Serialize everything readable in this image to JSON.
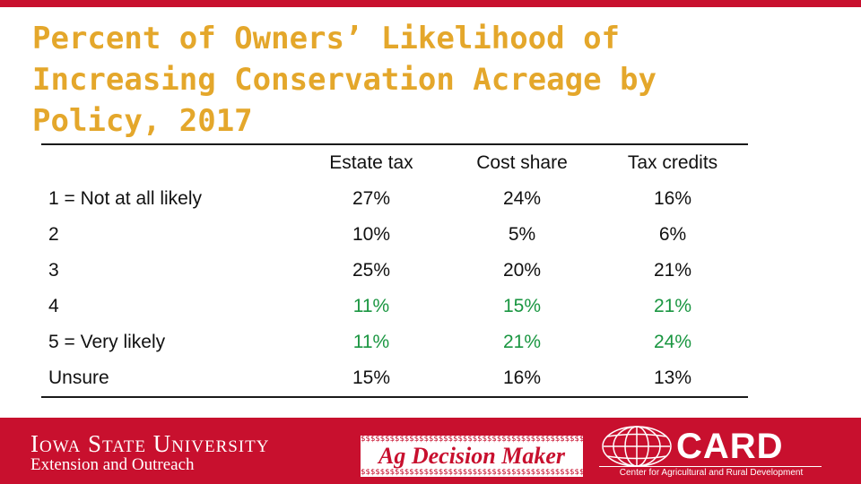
{
  "title": "Percent of Owners’ Likelihood of Increasing Conservation Acreage by Policy, 2017",
  "table": {
    "columns": [
      "Estate tax",
      "Cost share",
      "Tax credits"
    ],
    "rows": [
      {
        "label": "1 = Not at all likely",
        "values": [
          "27%",
          "24%",
          "16%"
        ]
      },
      {
        "label": "2",
        "values": [
          "10%",
          "5%",
          "6%"
        ]
      },
      {
        "label": "3",
        "values": [
          "25%",
          "20%",
          "21%"
        ]
      },
      {
        "label": "4",
        "values": [
          "11%",
          "15%",
          "21%"
        ]
      },
      {
        "label": "5 = Very likely",
        "values": [
          "11%",
          "21%",
          "24%"
        ]
      },
      {
        "label": "Unsure",
        "values": [
          "15%",
          "16%",
          "13%"
        ]
      }
    ]
  },
  "colors": {
    "title": "#e4a72b",
    "accent_red": "#c8102e",
    "highlight_green": "#1a9641"
  },
  "footer": {
    "isu_name": "Iowa State University",
    "isu_sub": "Extension and Outreach",
    "adm_dollars": "$$$$$$$$$$$$$$$$$$$$$$$$$$$$$$$$$$$$$$$$$$$$$$$$$",
    "adm_name": "Ag Decision Maker",
    "card_name": "CARD",
    "card_sub": "Center for Agricultural and Rural Development"
  }
}
